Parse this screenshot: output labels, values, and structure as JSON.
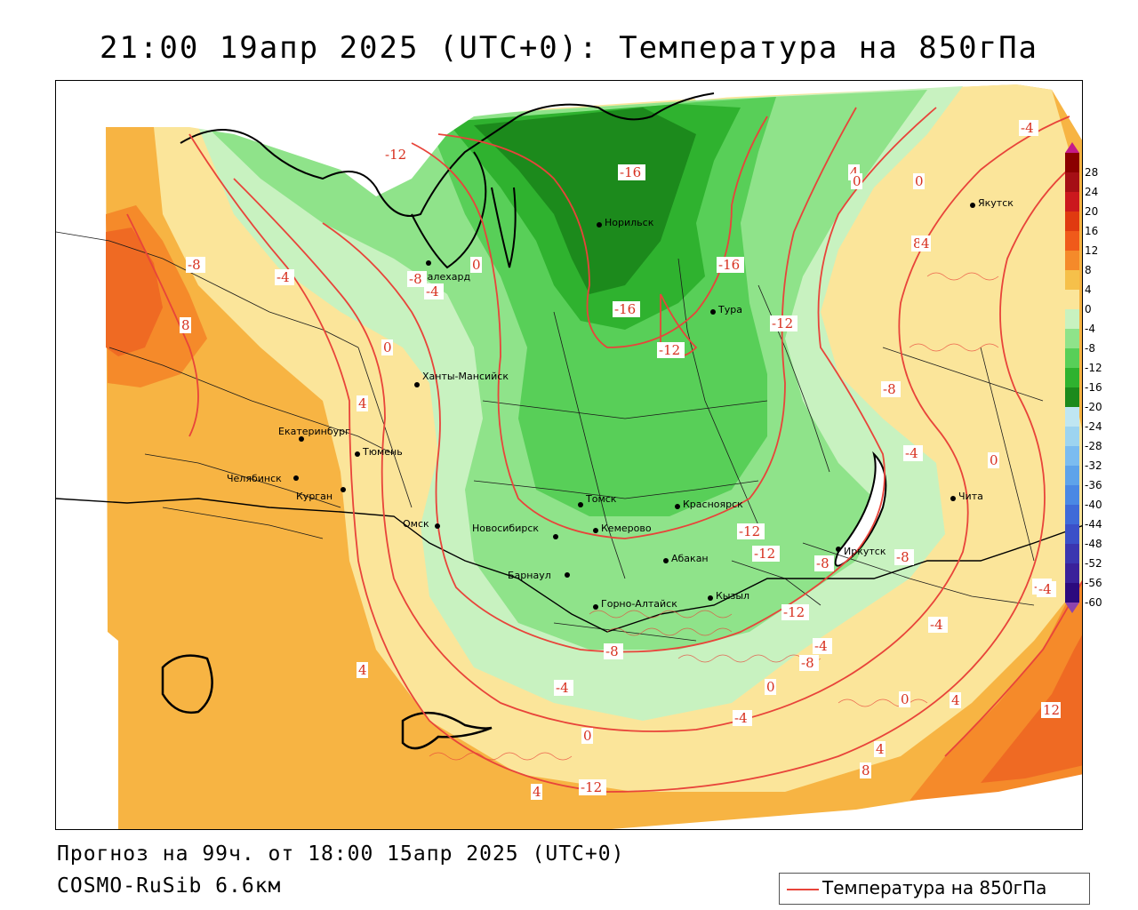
{
  "title": "21:00 19апр 2025 (UTC+0): Температура на 850гПа",
  "forecast_line": "Прогноз на 99ч. от 18:00 15апр 2025 (UTC+0)",
  "model_line": "COSMO-RuSib 6.6км",
  "legend": {
    "label": "Температура на 850гПа",
    "line_color": "#e8443a"
  },
  "colorbar": {
    "ticks": [
      "28",
      "24",
      "20",
      "16",
      "12",
      "8",
      "4",
      "0",
      "-4",
      "-8",
      "-12",
      "-16",
      "-20",
      "-24",
      "-28",
      "-32",
      "-36",
      "-40",
      "-44",
      "-48",
      "-52",
      "-56",
      "-60"
    ],
    "colors": [
      "#8b0000",
      "#a50f15",
      "#cb181d",
      "#e03a10",
      "#f05a1a",
      "#f58a2a",
      "#f6c04a",
      "#fbe59a",
      "#c8f2c0",
      "#8fe38a",
      "#58cf58",
      "#2fb22f",
      "#1c8a1c",
      "#bfe6f2",
      "#9dd4f0",
      "#7bbcf0",
      "#5ea3ea",
      "#4a88e4",
      "#3f6ad8",
      "#3b50c8",
      "#3b36b0",
      "#3a219a",
      "#2c0a7e"
    ]
  },
  "cities": [
    {
      "name": "Якутск"
    },
    {
      "name": "Норильск"
    },
    {
      "name": "Салехард"
    },
    {
      "name": "Тура"
    },
    {
      "name": "Ханты-Мансийск"
    },
    {
      "name": "Екатеринбург"
    },
    {
      "name": "Тюмень"
    },
    {
      "name": "Челябинск"
    },
    {
      "name": "Курган"
    },
    {
      "name": "Томск"
    },
    {
      "name": "Красноярск"
    },
    {
      "name": "Чита"
    },
    {
      "name": "Омск"
    },
    {
      "name": "Новосибирск"
    },
    {
      "name": "Кемерово"
    },
    {
      "name": "Абакан"
    },
    {
      "name": "Иркутск"
    },
    {
      "name": "Барнаул"
    },
    {
      "name": "Кызыл"
    },
    {
      "name": "Горно-Алтайск"
    }
  ],
  "isotherm_labels": [
    "-12",
    "-16",
    "-4",
    "0",
    "4",
    "8",
    "-8",
    "-4",
    "0",
    "4",
    "-16",
    "-8",
    "-4",
    "0",
    "-16",
    "-12",
    "-12",
    "0",
    "-8",
    "-4",
    "0",
    "-12",
    "-12",
    "-8",
    "-8",
    "-12",
    "-4",
    "-4",
    "4",
    "8",
    "-4",
    "-8",
    "-4",
    "-8",
    "-4",
    "0",
    "12",
    "-4",
    "0",
    "4",
    "0",
    "8",
    "4",
    "4",
    "4",
    "-12"
  ]
}
